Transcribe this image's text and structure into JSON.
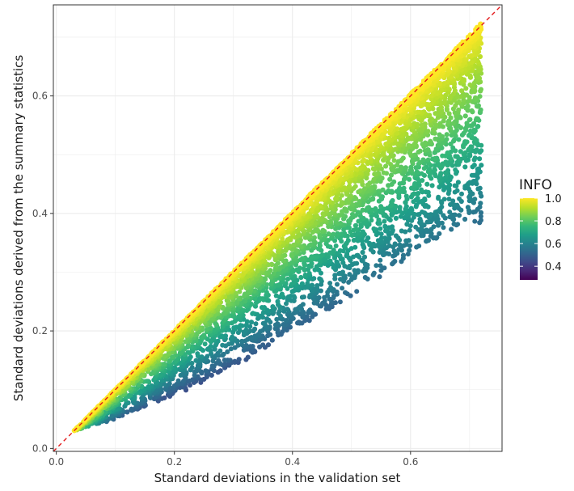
{
  "chart_data": {
    "type": "scatter",
    "title": "",
    "xlabel": "Standard deviations in the validation set",
    "ylabel": "Standard deviations derived from the summary statistics",
    "xlim": [
      -0.005,
      0.755
    ],
    "ylim": [
      -0.005,
      0.755
    ],
    "x_ticks": [
      0.0,
      0.2,
      0.4,
      0.6
    ],
    "x_tick_labels": [
      "0.0",
      "0.2",
      "0.4",
      "0.6"
    ],
    "y_ticks": [
      0.0,
      0.2,
      0.4,
      0.6
    ],
    "y_tick_labels": [
      "0.0",
      "0.2",
      "0.4",
      "0.6"
    ],
    "grid": true,
    "reference_line": {
      "style": "dashed",
      "color": "#e31a1c",
      "slope": 1,
      "intercept": 0
    },
    "color_scale": {
      "variable": "INFO",
      "palette": "viridis",
      "range": [
        0.28,
        1.0
      ],
      "ticks": [
        1.0,
        0.8,
        0.6,
        0.4
      ],
      "tick_labels": [
        "1.0",
        "0.8",
        "0.6",
        "0.4"
      ],
      "stops": [
        "#440154",
        "#482777",
        "#3e4a89",
        "#31688e",
        "#26828e",
        "#1f9e89",
        "#35b779",
        "#6ece58",
        "#b5de2b",
        "#fde725"
      ]
    },
    "legend_placement": "right",
    "series": [
      {
        "points_description_x_range": [
          0.03,
          0.72
        ],
        "envelope": {
          "upper": [
            [
              0.03,
              0.03
            ],
            [
              0.72,
              0.71
            ]
          ],
          "lower": [
            [
              0.03,
              0.03
            ],
            [
              0.1,
              0.05
            ],
            [
              0.2,
              0.09
            ],
            [
              0.3,
              0.14
            ],
            [
              0.4,
              0.2
            ],
            [
              0.5,
              0.26
            ],
            [
              0.6,
              0.33
            ],
            [
              0.7,
              0.39
            ],
            [
              0.72,
              0.38
            ]
          ]
        }
      }
    ]
  }
}
